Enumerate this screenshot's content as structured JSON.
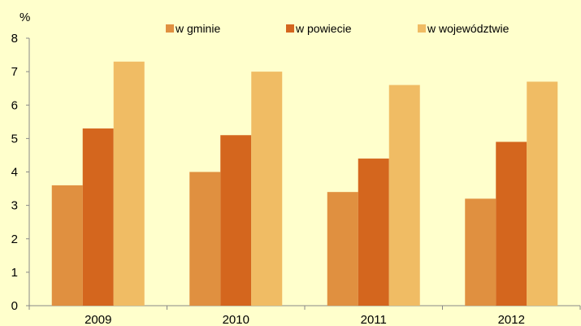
{
  "chart_data": {
    "type": "bar",
    "unit_label": "%",
    "categories": [
      "2009",
      "2010",
      "2011",
      "2012"
    ],
    "series": [
      {
        "name": "w gminie",
        "values": [
          3.6,
          4.0,
          3.4,
          3.2
        ],
        "color": "#e09040"
      },
      {
        "name": "w powiecie",
        "values": [
          5.3,
          5.1,
          4.4,
          4.9
        ],
        "color": "#d4661e"
      },
      {
        "name": "w województwie",
        "values": [
          7.3,
          7.0,
          6.6,
          6.7
        ],
        "color": "#f0bc64"
      }
    ],
    "ylim": [
      0,
      8
    ],
    "yticks": [
      "0",
      "1",
      "2",
      "3",
      "4",
      "5",
      "6",
      "7",
      "8"
    ],
    "grid": false,
    "legend_position": "top"
  }
}
